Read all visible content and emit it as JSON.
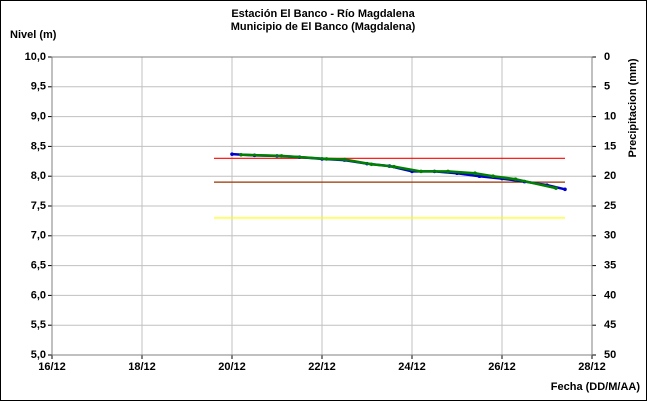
{
  "chart_data": {
    "type": "line",
    "title": "Estación El Banco - Río Magdalena",
    "subtitle": "Municipio de El Banco (Magdalena)",
    "y_label": "Nivel (m)",
    "y2_label": "Precipitacion (mm)",
    "x_label": "Fecha (DD/M/AA)",
    "xlim": [
      16,
      28
    ],
    "xticks": [
      {
        "value": 16,
        "label": "16/12"
      },
      {
        "value": 18,
        "label": "18/12"
      },
      {
        "value": 20,
        "label": "20/12"
      },
      {
        "value": 22,
        "label": "22/12"
      },
      {
        "value": 24,
        "label": "24/12"
      },
      {
        "value": 26,
        "label": "26/12"
      },
      {
        "value": 28,
        "label": "28/12"
      }
    ],
    "ylim": [
      5,
      10
    ],
    "yticks": [
      {
        "value": 5,
        "label": "5,0"
      },
      {
        "value": 5.5,
        "label": "5,5"
      },
      {
        "value": 6,
        "label": "6,0"
      },
      {
        "value": 6.5,
        "label": "6,5"
      },
      {
        "value": 7,
        "label": "7,0"
      },
      {
        "value": 7.5,
        "label": "7,5"
      },
      {
        "value": 8,
        "label": "8,0"
      },
      {
        "value": 8.5,
        "label": "8,5"
      },
      {
        "value": 9,
        "label": "9,0"
      },
      {
        "value": 9.5,
        "label": "9,5"
      },
      {
        "value": 10,
        "label": "10,0"
      }
    ],
    "y2lim": [
      0,
      50
    ],
    "y2_inverted": true,
    "y2ticks": [
      0,
      5,
      10,
      15,
      20,
      25,
      30,
      35,
      40,
      45,
      50
    ],
    "grid": true,
    "reference_lines": [
      {
        "value": 8.3,
        "color": "#ff0000",
        "x": [
          19.6,
          27.4
        ]
      },
      {
        "value": 7.9,
        "color": "#993300",
        "x": [
          19.6,
          27.4
        ]
      },
      {
        "value": 7.3,
        "color": "#ffff00",
        "x": [
          19.6,
          27.4
        ]
      }
    ],
    "series": [
      {
        "color": "#0000cc",
        "x": [
          20.0,
          20.5,
          21.0,
          21.5,
          22.0,
          22.5,
          23.0,
          23.5,
          24.0,
          24.5,
          25.0,
          25.5,
          26.0,
          26.5,
          27.0,
          27.4
        ],
        "values": [
          8.37,
          8.35,
          8.34,
          8.32,
          8.29,
          8.27,
          8.21,
          8.17,
          8.08,
          8.08,
          8.05,
          8.0,
          7.96,
          7.91,
          7.85,
          7.78
        ]
      },
      {
        "color": "#008000",
        "x": [
          20.2,
          21.1,
          22.1,
          22.5,
          23.1,
          23.6,
          24.2,
          24.8,
          25.4,
          25.8,
          26.3,
          27.2
        ],
        "values": [
          8.36,
          8.34,
          8.29,
          8.28,
          8.2,
          8.16,
          8.08,
          8.08,
          8.05,
          8.0,
          7.95,
          7.8
        ]
      }
    ]
  }
}
